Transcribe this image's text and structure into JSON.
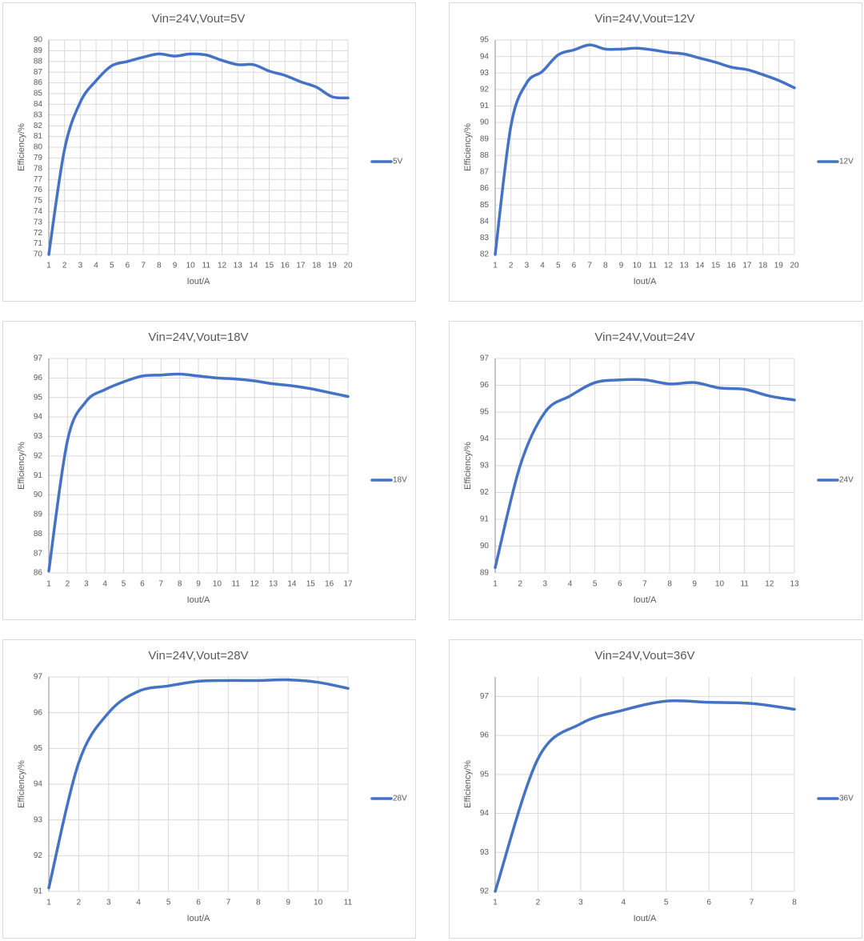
{
  "chart_data": [
    {
      "type": "line",
      "title": "Vin=24V,Vout=5V",
      "x_label": "Iout/A",
      "y_label": "Efficiency/%",
      "x": [
        1,
        2,
        3,
        4,
        5,
        6,
        7,
        8,
        9,
        10,
        11,
        12,
        13,
        14,
        15,
        16,
        17,
        18,
        19,
        20
      ],
      "xlim": [
        1,
        20
      ],
      "xticks": [
        1,
        2,
        3,
        4,
        5,
        6,
        7,
        8,
        9,
        10,
        11,
        12,
        13,
        14,
        15,
        16,
        17,
        18,
        19,
        20
      ],
      "ylim": [
        70,
        90
      ],
      "yticks": [
        70,
        71,
        72,
        73,
        74,
        75,
        76,
        77,
        78,
        79,
        80,
        81,
        82,
        83,
        84,
        85,
        86,
        87,
        88,
        89,
        90
      ],
      "series": [
        {
          "name": "5V",
          "color": "#4472c4",
          "values": [
            70,
            79.8,
            84.2,
            86.2,
            87.6,
            88.0,
            88.4,
            88.7,
            88.5,
            88.7,
            88.6,
            88.1,
            87.7,
            87.7,
            87.1,
            86.7,
            86.1,
            85.6,
            84.7,
            84.6
          ]
        }
      ],
      "grid": true,
      "legend": "right"
    },
    {
      "type": "line",
      "title": "Vin=24V,Vout=12V",
      "x_label": "Iout/A",
      "y_label": "Efficiency/%",
      "x": [
        1,
        2,
        3,
        4,
        5,
        6,
        7,
        8,
        9,
        10,
        11,
        12,
        13,
        14,
        15,
        16,
        17,
        18,
        19,
        20
      ],
      "xlim": [
        1,
        20
      ],
      "xticks": [
        1,
        2,
        3,
        4,
        5,
        6,
        7,
        8,
        9,
        10,
        11,
        12,
        13,
        14,
        15,
        16,
        17,
        18,
        19,
        20
      ],
      "ylim": [
        82,
        95
      ],
      "yticks": [
        82,
        83,
        84,
        85,
        86,
        87,
        88,
        89,
        90,
        91,
        92,
        93,
        94,
        95
      ],
      "series": [
        {
          "name": "12V",
          "color": "#4472c4",
          "values": [
            82.0,
            89.8,
            92.4,
            93.1,
            94.1,
            94.4,
            94.7,
            94.45,
            94.45,
            94.5,
            94.4,
            94.25,
            94.15,
            93.9,
            93.65,
            93.35,
            93.2,
            92.9,
            92.55,
            92.1
          ]
        }
      ],
      "grid": true,
      "legend": "right"
    },
    {
      "type": "line",
      "title": "Vin=24V,Vout=18V",
      "x_label": "Iout/A",
      "y_label": "Efficiency/%",
      "x": [
        1,
        2,
        3,
        4,
        5,
        6,
        7,
        8,
        9,
        10,
        11,
        12,
        13,
        14,
        15,
        16,
        17
      ],
      "xlim": [
        1,
        17
      ],
      "xticks": [
        1,
        2,
        3,
        4,
        5,
        6,
        7,
        8,
        9,
        10,
        11,
        12,
        13,
        14,
        15,
        16,
        17
      ],
      "ylim": [
        86,
        97
      ],
      "yticks": [
        86,
        87,
        88,
        89,
        90,
        91,
        92,
        93,
        94,
        95,
        96,
        97
      ],
      "series": [
        {
          "name": "18V",
          "color": "#4472c4",
          "values": [
            86.1,
            92.8,
            94.8,
            95.4,
            95.8,
            96.1,
            96.15,
            96.2,
            96.1,
            96.0,
            95.95,
            95.85,
            95.7,
            95.6,
            95.45,
            95.25,
            95.05
          ]
        }
      ],
      "grid": true,
      "legend": "right"
    },
    {
      "type": "line",
      "title": "Vin=24V,Vout=24V",
      "x_label": "Iout/A",
      "y_label": "Efficiency/%",
      "x": [
        1,
        2,
        3,
        4,
        5,
        6,
        7,
        8,
        9,
        10,
        11,
        12,
        13
      ],
      "xlim": [
        1,
        13
      ],
      "xticks": [
        1,
        2,
        3,
        4,
        5,
        6,
        7,
        8,
        9,
        10,
        11,
        12,
        13
      ],
      "ylim": [
        89,
        97
      ],
      "yticks": [
        89,
        90,
        91,
        92,
        93,
        94,
        95,
        96,
        97
      ],
      "series": [
        {
          "name": "24V",
          "color": "#4472c4",
          "values": [
            89.2,
            93.0,
            95.0,
            95.6,
            96.1,
            96.2,
            96.2,
            96.05,
            96.1,
            95.9,
            95.85,
            95.6,
            95.45
          ]
        }
      ],
      "grid": true,
      "legend": "right"
    },
    {
      "type": "line",
      "title": "Vin=24V,Vout=28V",
      "x_label": "Iout/A",
      "y_label": "Efficiency/%",
      "x": [
        1,
        2,
        3,
        4,
        5,
        6,
        7,
        8,
        9,
        10,
        11
      ],
      "xlim": [
        1,
        11
      ],
      "xticks": [
        1,
        2,
        3,
        4,
        5,
        6,
        7,
        8,
        9,
        10,
        11
      ],
      "ylim": [
        91,
        97
      ],
      "yticks": [
        91,
        92,
        93,
        94,
        95,
        96,
        97
      ],
      "series": [
        {
          "name": "28V",
          "color": "#4472c4",
          "values": [
            91.1,
            94.6,
            96.0,
            96.6,
            96.75,
            96.88,
            96.9,
            96.9,
            96.92,
            96.85,
            96.68
          ]
        }
      ],
      "grid": true,
      "legend": "right"
    },
    {
      "type": "line",
      "title": "Vin=24V,Vout=36V",
      "x_label": "Iout/A",
      "y_label": "Efficiency/%",
      "x": [
        1,
        2,
        3,
        4,
        5,
        6,
        7,
        8
      ],
      "xlim": [
        1,
        8
      ],
      "xticks": [
        1,
        2,
        3,
        4,
        5,
        6,
        7,
        8
      ],
      "ylim": [
        92,
        97.5
      ],
      "yticks": [
        92,
        93,
        94,
        95,
        96,
        97
      ],
      "series": [
        {
          "name": "36V",
          "color": "#4472c4",
          "values": [
            92.0,
            95.4,
            96.3,
            96.65,
            96.88,
            96.85,
            96.82,
            96.67
          ]
        }
      ],
      "grid": true,
      "legend": "right"
    }
  ]
}
